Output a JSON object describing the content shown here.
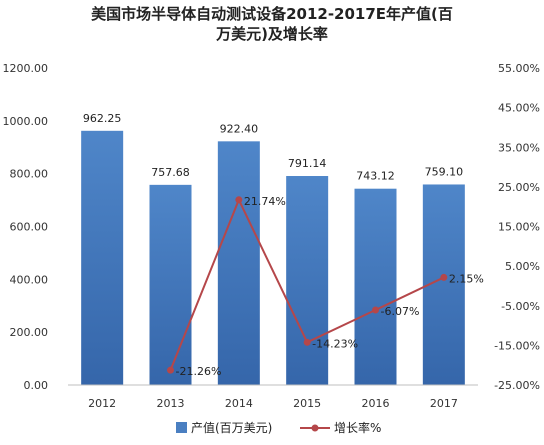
{
  "chart_data": {
    "type": "bar",
    "title_line1": "美国市场半导体自动测试设备2012-2017E年产值(百",
    "title_line2": "万美元)及增长率",
    "categories": [
      "2012",
      "2013",
      "2014",
      "2015",
      "2016",
      "2017"
    ],
    "series": [
      {
        "name": "产值(百万美元)",
        "type": "bar",
        "axis": "left",
        "values": [
          962.25,
          757.68,
          922.4,
          791.14,
          743.12,
          759.1
        ],
        "labels": [
          "962.25",
          "757.68",
          "922.40",
          "791.14",
          "743.12",
          "759.10"
        ],
        "color": "#4a7fc1"
      },
      {
        "name": "增长率%",
        "type": "line",
        "axis": "right",
        "values": [
          null,
          -21.26,
          21.74,
          -14.23,
          -6.07,
          2.15
        ],
        "labels": [
          "",
          "-21.26%",
          "21.74%",
          "-14.23%",
          "-6.07%",
          "2.15%"
        ],
        "color": "#b5474a"
      }
    ],
    "left_axis": {
      "min": 0,
      "max": 1200,
      "step": 200,
      "tick_labels": [
        "0.00",
        "200.00",
        "400.00",
        "600.00",
        "800.00",
        "1000.00",
        "1200.00"
      ]
    },
    "right_axis": {
      "min": -25,
      "max": 55,
      "step": 10,
      "tick_labels": [
        "-25.00%",
        "-15.00%",
        "-5.00%",
        "5.00%",
        "15.00%",
        "25.00%",
        "35.00%",
        "45.00%",
        "55.00%"
      ]
    },
    "grid": false,
    "legend_position": "bottom"
  }
}
